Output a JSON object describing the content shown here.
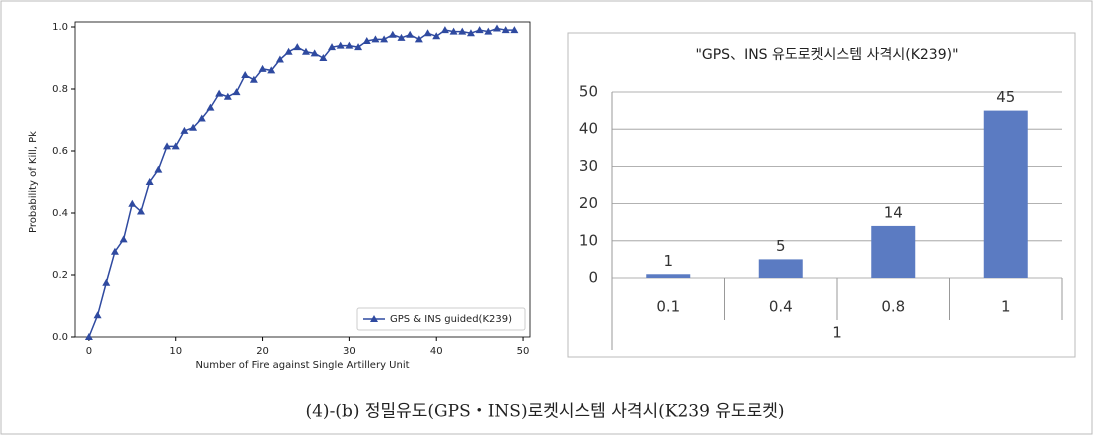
{
  "chart_data": [
    {
      "type": "line",
      "xlabel": "Number of Fire against Single Artillery Unit",
      "ylabel": "Probability of Kill, Pk",
      "x": [
        0,
        1,
        2,
        3,
        4,
        5,
        6,
        7,
        8,
        9,
        10,
        11,
        12,
        13,
        14,
        15,
        16,
        17,
        18,
        19,
        20,
        21,
        22,
        23,
        24,
        25,
        26,
        27,
        28,
        29,
        30,
        31,
        32,
        33,
        34,
        35,
        36,
        37,
        38,
        39,
        40,
        41,
        42,
        43,
        44,
        45,
        46,
        47,
        48,
        49
      ],
      "series": [
        {
          "name": "GPS & INS guided(K239)",
          "color": "#2f4aa0",
          "values": [
            0.0,
            0.07,
            0.175,
            0.275,
            0.315,
            0.43,
            0.405,
            0.5,
            0.54,
            0.615,
            0.615,
            0.665,
            0.675,
            0.705,
            0.74,
            0.785,
            0.775,
            0.79,
            0.845,
            0.83,
            0.865,
            0.86,
            0.895,
            0.92,
            0.935,
            0.92,
            0.915,
            0.9,
            0.935,
            0.94,
            0.94,
            0.935,
            0.955,
            0.96,
            0.96,
            0.975,
            0.965,
            0.975,
            0.96,
            0.98,
            0.97,
            0.99,
            0.985,
            0.985,
            0.98,
            0.99,
            0.985,
            0.995,
            0.99,
            0.99
          ]
        }
      ],
      "xlim": [
        -1.6,
        50.8
      ],
      "xticks": [
        0,
        10,
        20,
        30,
        40,
        50
      ],
      "ylim": [
        0,
        1.0
      ],
      "yticks": [
        {
          "value": 0,
          "label": "0.0"
        },
        0.2,
        0.4,
        0.6,
        0.8,
        {
          "value": 1.0,
          "label": "1.0"
        }
      ],
      "legend": "lower right"
    },
    {
      "type": "bar",
      "title": "\"GPS、INS 유도로켓시스템 사격시(K239)\"",
      "categories": [
        "0.1",
        "0.4",
        "0.8",
        "1"
      ],
      "group": "1",
      "values": [
        1,
        5,
        14,
        45
      ],
      "color": "#5b7bc2",
      "ylim": [
        0,
        50
      ],
      "yticks": [
        0,
        10,
        20,
        30,
        40,
        50
      ],
      "grid": true
    }
  ],
  "caption": "(4)-(b) 정밀유도(GPS・INS)로켓시스템 사격시(K239 유도로켓)"
}
